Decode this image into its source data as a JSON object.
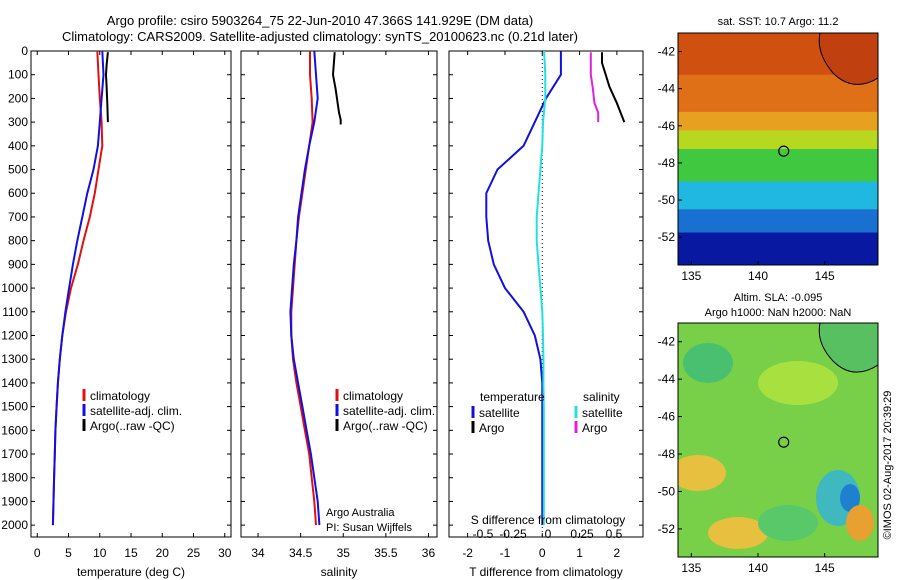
{
  "header": {
    "line1": "Argo profile: csiro 5903264_75 22-Jun-2010 47.366S 141.929E (DM data)",
    "line2": "Climatology: CARS2009. Satellite-adjusted climatology: synTS_20100623.nc (0.21d later)"
  },
  "colors": {
    "climatology": "#e01010",
    "satellite": "#1010e0",
    "argo": "#000000",
    "salinity_satellite": "#20e0e0",
    "salinity_argo": "#e020e0",
    "land": "#f08040"
  },
  "chart_data": [
    {
      "type": "line",
      "panel": "temperature",
      "xlabel": "temperature (deg C)",
      "ylabel": "",
      "xlim": [
        -1,
        31
      ],
      "ylim": [
        2050,
        0
      ],
      "xticks": [
        "0",
        "5",
        "10",
        "15",
        "20",
        "25",
        "30"
      ],
      "xtick_values": [
        0,
        5,
        10,
        15,
        20,
        25,
        30
      ],
      "yticks": [
        "0",
        "100",
        "200",
        "300",
        "400",
        "500",
        "600",
        "700",
        "800",
        "900",
        "1000",
        "1100",
        "1200",
        "1300",
        "1400",
        "1500",
        "1600",
        "1700",
        "1800",
        "1900",
        "2000"
      ],
      "ytick_values": [
        0,
        100,
        200,
        300,
        400,
        500,
        600,
        700,
        800,
        900,
        1000,
        1100,
        1200,
        1300,
        1400,
        1500,
        1600,
        1700,
        1800,
        1900,
        2000
      ],
      "legend": [
        "climatology",
        "satellite-adj. clim.",
        "Argo(..raw -QC)"
      ],
      "legend_position": "lower-right",
      "series": [
        {
          "name": "climatology",
          "color": "#e01010",
          "x": [
            9.6,
            9.8,
            10.0,
            10.3,
            10.4,
            9.8,
            9.2,
            8.4,
            7.4,
            6.5,
            5.4,
            4.6,
            4.0,
            3.6,
            3.3,
            3.1,
            2.9,
            2.8,
            2.7,
            2.6,
            2.5
          ],
          "y": [
            0,
            100,
            200,
            300,
            400,
            500,
            600,
            700,
            800,
            900,
            1000,
            1100,
            1200,
            1300,
            1400,
            1500,
            1600,
            1700,
            1800,
            1900,
            2000
          ]
        },
        {
          "name": "satellite-adj. clim.",
          "color": "#1010e0",
          "x": [
            10.4,
            10.6,
            10.3,
            10.0,
            9.7,
            9.0,
            8.0,
            7.2,
            6.4,
            5.7,
            5.1,
            4.5,
            4.0,
            3.6,
            3.3,
            3.1,
            2.9,
            2.8,
            2.7,
            2.6,
            2.5
          ],
          "y": [
            0,
            100,
            200,
            300,
            400,
            500,
            600,
            700,
            800,
            900,
            1000,
            1100,
            1200,
            1300,
            1400,
            1500,
            1600,
            1700,
            1800,
            1900,
            2000
          ]
        },
        {
          "name": "Argo(..raw -QC)",
          "color": "#000000",
          "x": [
            11.3,
            11.1,
            11.0,
            11.1,
            11.2,
            11.3
          ],
          "y": [
            5,
            60,
            100,
            150,
            220,
            300
          ]
        }
      ]
    },
    {
      "type": "line",
      "panel": "salinity",
      "xlabel": "salinity",
      "ylabel": "",
      "xlim": [
        33.8,
        36.1
      ],
      "ylim": [
        2050,
        0
      ],
      "xticks": [
        "34",
        "34.5",
        "35",
        "35.5",
        "36"
      ],
      "xtick_values": [
        34,
        34.5,
        35,
        35.5,
        36
      ],
      "legend": [
        "climatology",
        "satellite-adj. clim.",
        "Argo(..raw -QC)"
      ],
      "legend_position": "lower-right",
      "annotation": [
        "Argo Australia",
        "PI: Susan Wijffels"
      ],
      "series": [
        {
          "name": "climatology",
          "color": "#e01010",
          "x": [
            34.61,
            34.61,
            34.63,
            34.64,
            34.6,
            34.56,
            34.52,
            34.48,
            34.45,
            34.43,
            34.41,
            34.39,
            34.39,
            34.41,
            34.45,
            34.5,
            34.55,
            34.6,
            34.63,
            34.66,
            34.68
          ],
          "y": [
            0,
            100,
            200,
            300,
            400,
            500,
            600,
            700,
            800,
            900,
            1000,
            1100,
            1200,
            1300,
            1400,
            1500,
            1600,
            1700,
            1800,
            1900,
            2000
          ]
        },
        {
          "name": "satellite-adj. clim.",
          "color": "#1010e0",
          "x": [
            34.66,
            34.68,
            34.7,
            34.66,
            34.6,
            34.55,
            34.51,
            34.47,
            34.45,
            34.42,
            34.4,
            34.38,
            34.39,
            34.42,
            34.47,
            34.52,
            34.57,
            34.62,
            34.66,
            34.7,
            34.72
          ],
          "y": [
            0,
            100,
            200,
            300,
            400,
            500,
            600,
            700,
            800,
            900,
            1000,
            1100,
            1200,
            1300,
            1400,
            1500,
            1600,
            1700,
            1800,
            1900,
            2000
          ]
        },
        {
          "name": "Argo(..raw -QC)",
          "color": "#000000",
          "x": [
            34.9,
            34.89,
            34.88,
            34.91,
            34.95,
            34.97,
            34.97
          ],
          "y": [
            5,
            50,
            100,
            160,
            260,
            290,
            310
          ]
        }
      ]
    },
    {
      "type": "line",
      "panel": "difference",
      "xlabel": "T difference from climatology",
      "xlabel_top": "S difference from climatology",
      "xlim": [
        -2.5,
        2.7
      ],
      "ylim": [
        2050,
        0
      ],
      "xticks": [
        "-2",
        "-1",
        "0",
        "1",
        "2"
      ],
      "xtick_values": [
        -2,
        -1,
        0,
        1,
        2
      ],
      "xticks_salinity": [
        "-0.5",
        "-0.25",
        "0",
        "0.25",
        "0.5"
      ],
      "legend_titles": [
        "temperature",
        "salinity"
      ],
      "legend": [
        "satellite",
        "Argo",
        "satellite",
        "Argo"
      ],
      "legend_position": "lower-right",
      "series": [
        {
          "name": "satellite",
          "group": "temperature",
          "color": "#1010e0",
          "x": [
            0.5,
            0.5,
            0.1,
            -0.2,
            -0.5,
            -1.2,
            -1.5,
            -1.5,
            -1.45,
            -1.3,
            -1.0,
            -0.5,
            -0.2,
            -0.05,
            0,
            0,
            0,
            0,
            0,
            0,
            0
          ],
          "y": [
            0,
            100,
            200,
            300,
            400,
            500,
            600,
            700,
            800,
            900,
            1000,
            1100,
            1200,
            1300,
            1400,
            1500,
            1600,
            1700,
            1800,
            1900,
            2000
          ]
        },
        {
          "name": "Argo",
          "group": "temperature",
          "color": "#000000",
          "x": [
            1.6,
            1.6,
            1.7,
            1.8,
            2.0,
            2.1,
            2.2
          ],
          "y": [
            5,
            50,
            100,
            150,
            220,
            260,
            300
          ]
        },
        {
          "name": "satellite",
          "group": "salinity",
          "color": "#20e0e0",
          "x": [
            0.05,
            0.08,
            0.08,
            0.02,
            0.0,
            -0.05,
            -0.1,
            -0.15,
            -0.15,
            -0.1,
            -0.05,
            0.0,
            0.02,
            0.03,
            0.03,
            0.04,
            0.04,
            0.04,
            0.04,
            0.04,
            0.04
          ],
          "y": [
            0,
            100,
            200,
            300,
            400,
            500,
            600,
            700,
            800,
            900,
            1000,
            1100,
            1200,
            1300,
            1400,
            1500,
            1600,
            1700,
            1800,
            1900,
            2000
          ]
        },
        {
          "name": "Argo",
          "group": "salinity",
          "color": "#e020e0",
          "x": [
            1.3,
            1.3,
            1.3,
            1.35,
            1.4,
            1.5,
            1.5
          ],
          "y": [
            5,
            50,
            100,
            150,
            220,
            260,
            300
          ]
        }
      ]
    },
    {
      "type": "heatmap",
      "panel": "sst-map",
      "title": "sat. SST: 10.7 Argo: 11.2",
      "xlim": [
        134,
        149
      ],
      "ylim": [
        -53.5,
        -41
      ],
      "xticks": [
        "135",
        "140",
        "145"
      ],
      "xtick_values": [
        135,
        140,
        145
      ],
      "yticks": [
        "-42",
        "-44",
        "-46",
        "-48",
        "-50",
        "-52"
      ],
      "ytick_values": [
        -42,
        -44,
        -46,
        -48,
        -50,
        -52
      ],
      "marker": {
        "lon": 141.929,
        "lat": -47.366
      }
    },
    {
      "type": "heatmap",
      "panel": "sla-map",
      "title": "Altim. SLA: -0.095",
      "subtitle": "Argo h1000: NaN h2000: NaN",
      "xlim": [
        134,
        149
      ],
      "ylim": [
        -53.5,
        -41
      ],
      "xticks": [
        "135",
        "140",
        "145"
      ],
      "xtick_values": [
        135,
        140,
        145
      ],
      "yticks": [
        "-42",
        "-44",
        "-46",
        "-48",
        "-50",
        "-52"
      ],
      "ytick_values": [
        -42,
        -44,
        -46,
        -48,
        -50,
        -52
      ],
      "marker": {
        "lon": 141.929,
        "lat": -47.366
      }
    }
  ],
  "side_stamp": "©IMOS 02-Aug-2017 20:39:29"
}
